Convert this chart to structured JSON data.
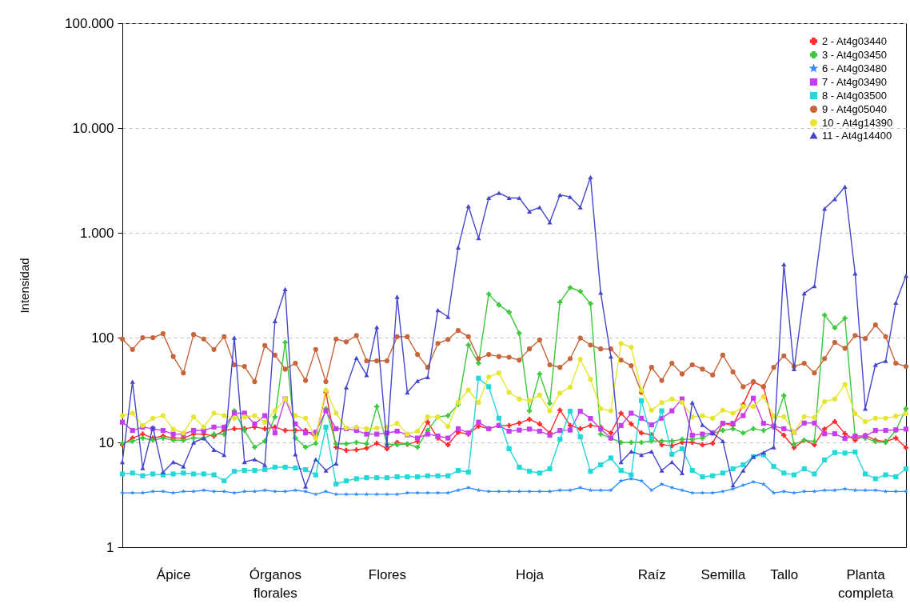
{
  "chart_data": {
    "type": "line",
    "ylabel": "Intensidad",
    "log": "y",
    "grid": "y",
    "legend": "top right",
    "line_style": "solid",
    "categories": [
      null,
      null,
      null,
      null,
      null,
      "Ápice",
      null,
      null,
      null,
      null,
      null,
      null,
      null,
      null,
      null,
      "Órganos florales",
      null,
      null,
      null,
      null,
      null,
      null,
      null,
      null,
      null,
      null,
      "Flores",
      null,
      null,
      null,
      null,
      null,
      null,
      null,
      null,
      null,
      null,
      null,
      null,
      null,
      "Hoja",
      null,
      null,
      null,
      null,
      null,
      null,
      null,
      null,
      null,
      null,
      null,
      "Raíz",
      null,
      null,
      null,
      null,
      null,
      null,
      "Semilla",
      null,
      null,
      null,
      null,
      null,
      "Tallo",
      null,
      null,
      null,
      null,
      null,
      null,
      null,
      "Planta completa",
      null,
      null,
      null,
      null
    ],
    "ylim": [
      1,
      100000
    ],
    "yticks": [
      1,
      10,
      100,
      {
        "value": 1000,
        "label": "1.000"
      },
      {
        "value": 10000,
        "label": "10.000"
      },
      {
        "value": 100000,
        "label": "100.000"
      }
    ],
    "series": [
      {
        "name": "2 - At4g03440",
        "color": "#ff2a2a",
        "marker": "cross",
        "values": [
          9.5,
          11,
          12,
          11,
          11.5,
          11,
          11,
          12,
          12,
          11.5,
          13,
          13.5,
          13.5,
          14,
          13.5,
          14,
          13,
          13,
          13,
          11.3,
          30,
          9,
          8.4,
          8.5,
          8.8,
          9.8,
          8.7,
          10,
          9.6,
          10.2,
          15.6,
          11,
          9.5,
          12.5,
          12,
          14.3,
          13.5,
          14.5,
          14.5,
          15.3,
          16.6,
          15,
          12.3,
          20.3,
          14.5,
          13.5,
          14.5,
          14,
          12.3,
          19,
          15,
          12.3,
          11.8,
          9.5,
          9.3,
          10,
          10,
          9.5,
          9.8,
          15.2,
          14.5,
          23,
          37.6,
          34,
          14,
          11.7,
          8.9,
          10.5,
          9.5,
          13.4,
          15.8,
          12.1,
          10.5,
          11.7,
          10.5,
          10.2,
          11,
          8.9
        ]
      },
      {
        "name": "3 - At4g03450",
        "color": "#3cc83c",
        "marker": "cross",
        "values": [
          9.8,
          10.3,
          11,
          10.5,
          11,
          10.5,
          10.5,
          11,
          11,
          12,
          12,
          20,
          13,
          9,
          10.3,
          17.5,
          90,
          11,
          9,
          9.8,
          21,
          9.7,
          9.7,
          10,
          9.7,
          22,
          9.7,
          9.5,
          9.7,
          9,
          13,
          17.5,
          18,
          23,
          85,
          57,
          260,
          205,
          175,
          110,
          20,
          45,
          23.6,
          218,
          300,
          276,
          211,
          12,
          11,
          10,
          10,
          10,
          10.3,
          10.3,
          10.3,
          10.7,
          10.7,
          11,
          12.3,
          13,
          13.5,
          12.3,
          13.5,
          13,
          14.3,
          28,
          9.6,
          10.5,
          10.2,
          164,
          124,
          153,
          11.3,
          11,
          10.2,
          10,
          13,
          21
        ]
      },
      {
        "name": "6 - At4g03480",
        "color": "#2f8cff",
        "marker": "star",
        "values": [
          3.3,
          3.3,
          3.3,
          3.4,
          3.4,
          3.3,
          3.4,
          3.4,
          3.5,
          3.4,
          3.4,
          3.3,
          3.4,
          3.4,
          3.5,
          3.4,
          3.4,
          3.5,
          3.4,
          3.2,
          3.4,
          3.2,
          3.2,
          3.2,
          3.2,
          3.2,
          3.2,
          3.2,
          3.3,
          3.3,
          3.3,
          3.3,
          3.3,
          3.5,
          3.7,
          3.5,
          3.4,
          3.4,
          3.4,
          3.4,
          3.4,
          3.4,
          3.4,
          3.5,
          3.5,
          3.7,
          3.5,
          3.5,
          3.5,
          4.3,
          4.5,
          4.3,
          3.5,
          4.0,
          3.7,
          3.5,
          3.3,
          3.3,
          3.3,
          3.4,
          3.6,
          3.9,
          4.2,
          4.0,
          3.3,
          3.4,
          3.3,
          3.4,
          3.4,
          3.5,
          3.5,
          3.6,
          3.5,
          3.5,
          3.5,
          3.4,
          3.4,
          3.4
        ]
      },
      {
        "name": "7 - At4g03490",
        "color": "#c83cf0",
        "marker": "square",
        "values": [
          15.6,
          13,
          14,
          13.5,
          13,
          12,
          12,
          13,
          13,
          14,
          14,
          19,
          19,
          15,
          18,
          12.3,
          26,
          15,
          12.3,
          12.5,
          20,
          13.5,
          13.5,
          13,
          12,
          12,
          12.3,
          12.8,
          11.8,
          11,
          12,
          11.5,
          11,
          13.5,
          12.3,
          15.6,
          13.5,
          14.5,
          12.8,
          13.1,
          13.4,
          12.8,
          11.7,
          13,
          13.1,
          19.8,
          16.9,
          13.4,
          11,
          14.5,
          19,
          17,
          14.7,
          17,
          20,
          26,
          11.7,
          12,
          12.3,
          15.2,
          15.2,
          18,
          26.4,
          15.2,
          14.3,
          13.5,
          12.5,
          15.3,
          15.3,
          12.1,
          12.1,
          10.9,
          11.5,
          11.5,
          13,
          13,
          13.2,
          13.4
        ]
      },
      {
        "name": "8 - At4g03500",
        "color": "#22d8d8",
        "marker": "square",
        "values": [
          5.0,
          5.1,
          4.8,
          5.0,
          4.9,
          5.0,
          5.1,
          5.0,
          5.0,
          4.9,
          4.3,
          5.3,
          5.4,
          5.4,
          5.5,
          5.8,
          5.8,
          5.7,
          5.5,
          4.9,
          14,
          4.0,
          4.3,
          4.5,
          4.6,
          4.6,
          4.6,
          4.7,
          4.7,
          4.7,
          4.8,
          4.8,
          4.8,
          5.4,
          5.2,
          41,
          34,
          17,
          8.7,
          5.8,
          5.3,
          5.1,
          5.6,
          10.7,
          19.8,
          11.3,
          5.3,
          6.1,
          7.1,
          5.4,
          4.9,
          25,
          11,
          20,
          7.7,
          8.7,
          5.4,
          4.7,
          4.8,
          5.1,
          5.6,
          6.1,
          7.3,
          7.6,
          5.9,
          5.1,
          4.9,
          5.6,
          5.0,
          6.8,
          8.0,
          7.9,
          8.1,
          5.0,
          4.5,
          4.9,
          4.7,
          5.6
        ]
      },
      {
        "name": "9 - At4g05040",
        "color": "#c8653a",
        "marker": "circle",
        "values": [
          97,
          77,
          100,
          100,
          109,
          66,
          46,
          107,
          97,
          77,
          102,
          55,
          53,
          38,
          84,
          68,
          50,
          57,
          39,
          77,
          38,
          97,
          91,
          105,
          60,
          60,
          60,
          102,
          102,
          69,
          52,
          88,
          96,
          117,
          102,
          63,
          69,
          66,
          65,
          61,
          78,
          95,
          55,
          52,
          63,
          99,
          85,
          78,
          78,
          61,
          54,
          30,
          52,
          39,
          57,
          45,
          55,
          50,
          44,
          68,
          47,
          34,
          38,
          34,
          52,
          67,
          53,
          57,
          46,
          63,
          90,
          79,
          105,
          98,
          132,
          102,
          57,
          53
        ]
      },
      {
        "name": "10 - At4g14390",
        "color": "#e6e632",
        "marker": "circle",
        "values": [
          18,
          19,
          14.5,
          17,
          18,
          13.4,
          12.3,
          17.5,
          14,
          19,
          18,
          17,
          17.5,
          18,
          15.6,
          20,
          26,
          18,
          17,
          11,
          31.6,
          19,
          13.7,
          14,
          13.5,
          13.7,
          14,
          15.2,
          12,
          12.8,
          17.5,
          17.5,
          14.2,
          24,
          31.6,
          24,
          42,
          46,
          30,
          26,
          25,
          28.3,
          20,
          29.5,
          33.7,
          62,
          40,
          21,
          20,
          88,
          81,
          31.6,
          20.3,
          24,
          26,
          24,
          17.5,
          18,
          17,
          20.3,
          19,
          22,
          22,
          27.3,
          17.8,
          17.6,
          12.5,
          17.6,
          17.3,
          24.5,
          26,
          35.7,
          18.8,
          15.8,
          17,
          17,
          17.8,
          18.8
        ]
      },
      {
        "name": "11 - At4g14400",
        "color": "#4646cc",
        "marker": "triangle",
        "values": [
          6.5,
          38,
          5.7,
          14,
          5.2,
          6.5,
          5.9,
          10,
          11,
          8.5,
          7.6,
          100,
          6.5,
          6.9,
          6.1,
          144,
          290,
          7.7,
          3.8,
          6.9,
          5.4,
          6.3,
          33.6,
          64,
          44,
          126,
          9.5,
          245,
          30,
          38.6,
          42,
          183,
          158,
          725,
          1800,
          890,
          2150,
          2400,
          2150,
          2150,
          1600,
          1750,
          1260,
          2300,
          2200,
          1750,
          3400,
          268,
          66,
          6.5,
          8.2,
          7.6,
          8.2,
          5.4,
          6.5,
          5.1,
          24,
          14.7,
          12.3,
          10.3,
          3.9,
          5.4,
          7.3,
          8,
          9,
          500,
          50,
          265,
          310,
          1700,
          2100,
          2750,
          410,
          21,
          55,
          60,
          215,
          390
        ]
      }
    ]
  }
}
